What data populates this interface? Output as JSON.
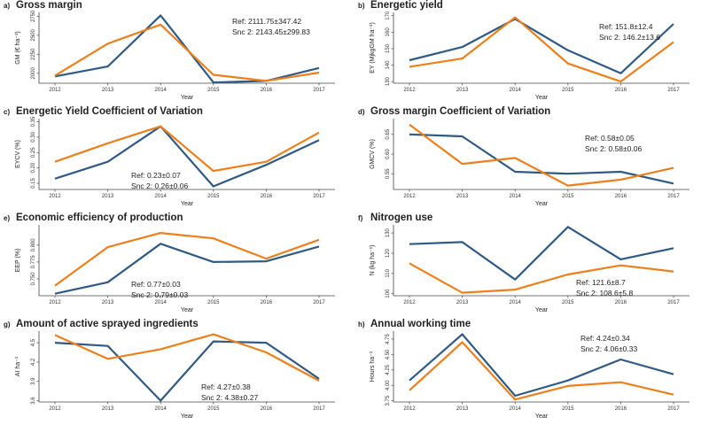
{
  "colors": {
    "ref": "#2F5A85",
    "snc2": "#EE7F1A",
    "axis": "#444444"
  },
  "panels": [
    {
      "label": "a)",
      "title": "Gross margin",
      "ylabel": "GM (€ ha⁻¹)",
      "xlabel": "Year",
      "ann_ref": "Ref: 2111.75±347.42",
      "ann_snc": "Snc 2:  2143.45±299.83",
      "chart_data": {
        "type": "line",
        "categories": [
          "2012",
          "2013",
          "2014",
          "2015",
          "2016",
          "2017"
        ],
        "yticks": [
          "2000",
          "2250",
          "2500",
          "2750"
        ],
        "ylim": [
          1870,
          2800
        ],
        "series": [
          {
            "values": [
              1960,
              2090,
              2760,
              1880,
              1900,
              2070
            ]
          },
          {
            "values": [
              1970,
              2390,
              2640,
              1980,
              1900,
              2010
            ]
          }
        ]
      }
    },
    {
      "label": "b)",
      "title": "Energetic yield",
      "ylabel": "EY (MjkgGM ha⁻¹)",
      "xlabel": "Year",
      "ann_ref": "Ref: 151.8±12.4",
      "ann_snc": "Snc 2:  146.2±13.6",
      "chart_data": {
        "type": "line",
        "categories": [
          "2012",
          "2013",
          "2014",
          "2015",
          "2016",
          "2017"
        ],
        "yticks": [
          "130",
          "140",
          "150",
          "160",
          "170"
        ],
        "ylim": [
          129,
          172
        ],
        "series": [
          {
            "values": [
              143,
              151,
              168,
              149,
              135,
              165
            ]
          },
          {
            "values": [
              139,
              144,
              169,
              141,
              130,
              154
            ]
          }
        ]
      }
    },
    {
      "label": "c)",
      "title": "Energetic Yield Coefficient of Variation",
      "ylabel": "EYCV (%)",
      "xlabel": "Year",
      "ann_ref": "Ref: 0.23±0.07",
      "ann_snc": "Snc 2:  0.26±0.06",
      "chart_data": {
        "type": "line",
        "categories": [
          "2012",
          "2013",
          "2014",
          "2015",
          "2016",
          "2017"
        ],
        "yticks": [
          "0.15",
          "0.20",
          "0.25",
          "0.30",
          "0.35"
        ],
        "ylim": [
          0.13,
          0.36
        ],
        "series": [
          {
            "values": [
              0.165,
              0.22,
              0.335,
              0.14,
              0.21,
              0.29
            ]
          },
          {
            "values": [
              0.22,
              0.28,
              0.335,
              0.19,
              0.22,
              0.315
            ]
          }
        ]
      }
    },
    {
      "label": "d)",
      "title": "Gross margin Coefficient of Variation",
      "ylabel": "GMCV (%)",
      "xlabel": "Year",
      "ann_ref": "Ref: 0.58±0.05",
      "ann_snc": "Snc 2:  0.58±0.06",
      "chart_data": {
        "type": "line",
        "categories": [
          "2012",
          "2013",
          "2014",
          "2015",
          "2016",
          "2017"
        ],
        "yticks": [
          "0.55",
          "0.60",
          "0.65"
        ],
        "ylim": [
          0.51,
          0.69
        ],
        "series": [
          {
            "values": [
              0.65,
              0.645,
              0.555,
              0.55,
              0.555,
              0.525
            ]
          },
          {
            "values": [
              0.675,
              0.575,
              0.59,
              0.52,
              0.535,
              0.565
            ]
          }
        ]
      }
    },
    {
      "label": "e)",
      "title": "Economic efficiency of production",
      "ylabel": "EEP (%)",
      "xlabel": "Year",
      "ann_ref": "Ref: 0.77±0.03",
      "ann_snc": "Snc 2:  0.79±0.03",
      "chart_data": {
        "type": "line",
        "categories": [
          "2012",
          "2013",
          "2014",
          "2015",
          "2016",
          "2017"
        ],
        "yticks": [
          "0.750",
          "0.775",
          "0.800"
        ],
        "ylim": [
          0.725,
          0.83
        ],
        "series": [
          {
            "values": [
              0.728,
              0.745,
              0.802,
              0.775,
              0.776,
              0.798
            ]
          },
          {
            "values": [
              0.74,
              0.797,
              0.818,
              0.81,
              0.78,
              0.808
            ]
          }
        ]
      }
    },
    {
      "label": "f)",
      "title": "Nitrogen use",
      "ylabel": "N (kg ha⁻¹)",
      "xlabel": "Year",
      "ann_ref": "Ref: 121.6±8.7",
      "ann_snc": "Snc 2:  108.6±5.8",
      "chart_data": {
        "type": "line",
        "categories": [
          "2012",
          "2013",
          "2014",
          "2015",
          "2016",
          "2017"
        ],
        "yticks": [
          "100",
          "110",
          "120",
          "130"
        ],
        "ylim": [
          99,
          134
        ],
        "series": [
          {
            "values": [
              124.5,
              125.5,
              107,
              133,
              117,
              122.5
            ]
          },
          {
            "values": [
              115,
              100.5,
              102,
              109.5,
              114,
              111
            ]
          }
        ]
      }
    },
    {
      "label": "g)",
      "title": "Amount of active sprayed ingredients",
      "ylabel": "AI ha⁻¹",
      "xlabel": "Year",
      "ann_ref": "Ref: 4.27±0.38",
      "ann_snc": "Snc 2:  4.38±0.27",
      "chart_data": {
        "type": "line",
        "categories": [
          "2012",
          "2013",
          "2014",
          "2015",
          "2016",
          "2017"
        ],
        "yticks": [
          "3.6",
          "3.9",
          "4.2",
          "4.5"
        ],
        "ylim": [
          3.58,
          4.68
        ],
        "series": [
          {
            "values": [
              4.5,
              4.45,
              3.6,
              4.52,
              4.5,
              3.94
            ]
          },
          {
            "values": [
              4.62,
              4.25,
              4.4,
              4.63,
              4.35,
              3.91
            ]
          }
        ]
      }
    },
    {
      "label": "h)",
      "title": "Annual working time",
      "ylabel": "Hours ha⁻¹",
      "xlabel": "Year",
      "ann_ref": "Ref: 4.24±0.34",
      "ann_snc": "Snc 2:  4.06±0.33",
      "chart_data": {
        "type": "line",
        "categories": [
          "2012",
          "2013",
          "2014",
          "2015",
          "2016",
          "2017"
        ],
        "yticks": [
          "3.75",
          "4.00",
          "4.25",
          "4.50",
          "4.75"
        ],
        "ylim": [
          3.73,
          4.88
        ],
        "series": [
          {
            "values": [
              4.08,
              4.83,
              3.83,
              4.08,
              4.42,
              4.18
            ]
          },
          {
            "values": [
              3.92,
              4.7,
              3.77,
              3.99,
              4.05,
              3.85
            ]
          }
        ]
      }
    }
  ]
}
